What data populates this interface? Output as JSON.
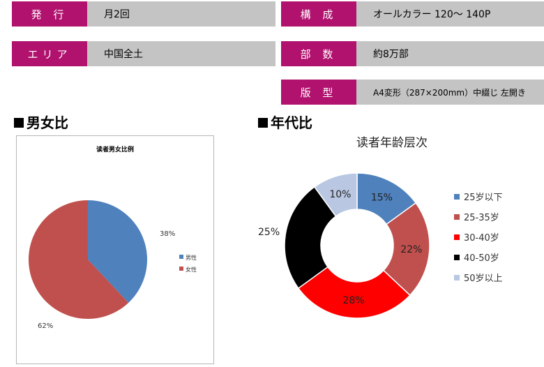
{
  "info": [
    {
      "label": "発 行",
      "value": "月2回"
    },
    {
      "label": "構 成",
      "value": "オールカラー 120〜 140P"
    },
    {
      "label": "エリア",
      "value": "中国全土"
    },
    {
      "label": "部 数",
      "value": "約8万部"
    },
    {
      "label": "版 型",
      "value": "A4変形（287×200mm）中綴じ 左開き"
    }
  ],
  "sections": {
    "gender": "男女比",
    "age": "年代比"
  },
  "chart_data": [
    {
      "type": "pie",
      "title": "读者男女比例",
      "categories": [
        "男性",
        "女性"
      ],
      "values": [
        38,
        62
      ],
      "labels": [
        "38%",
        "62%"
      ],
      "colors": [
        "#4f81bd",
        "#c0504d"
      ],
      "legend": "right"
    },
    {
      "type": "pie",
      "title": "读者年龄层次",
      "categories": [
        "25岁以下",
        "25-35岁",
        "30-40岁",
        "40-50岁",
        "50岁以上"
      ],
      "values": [
        15,
        22,
        28,
        25,
        10
      ],
      "labels": [
        "15%",
        "22%",
        "28%",
        "25%",
        "10%"
      ],
      "colors": [
        "#4f81bd",
        "#c0504d",
        "#ff0000",
        "#000000",
        "#b9c7e2"
      ],
      "legend": "right"
    }
  ]
}
